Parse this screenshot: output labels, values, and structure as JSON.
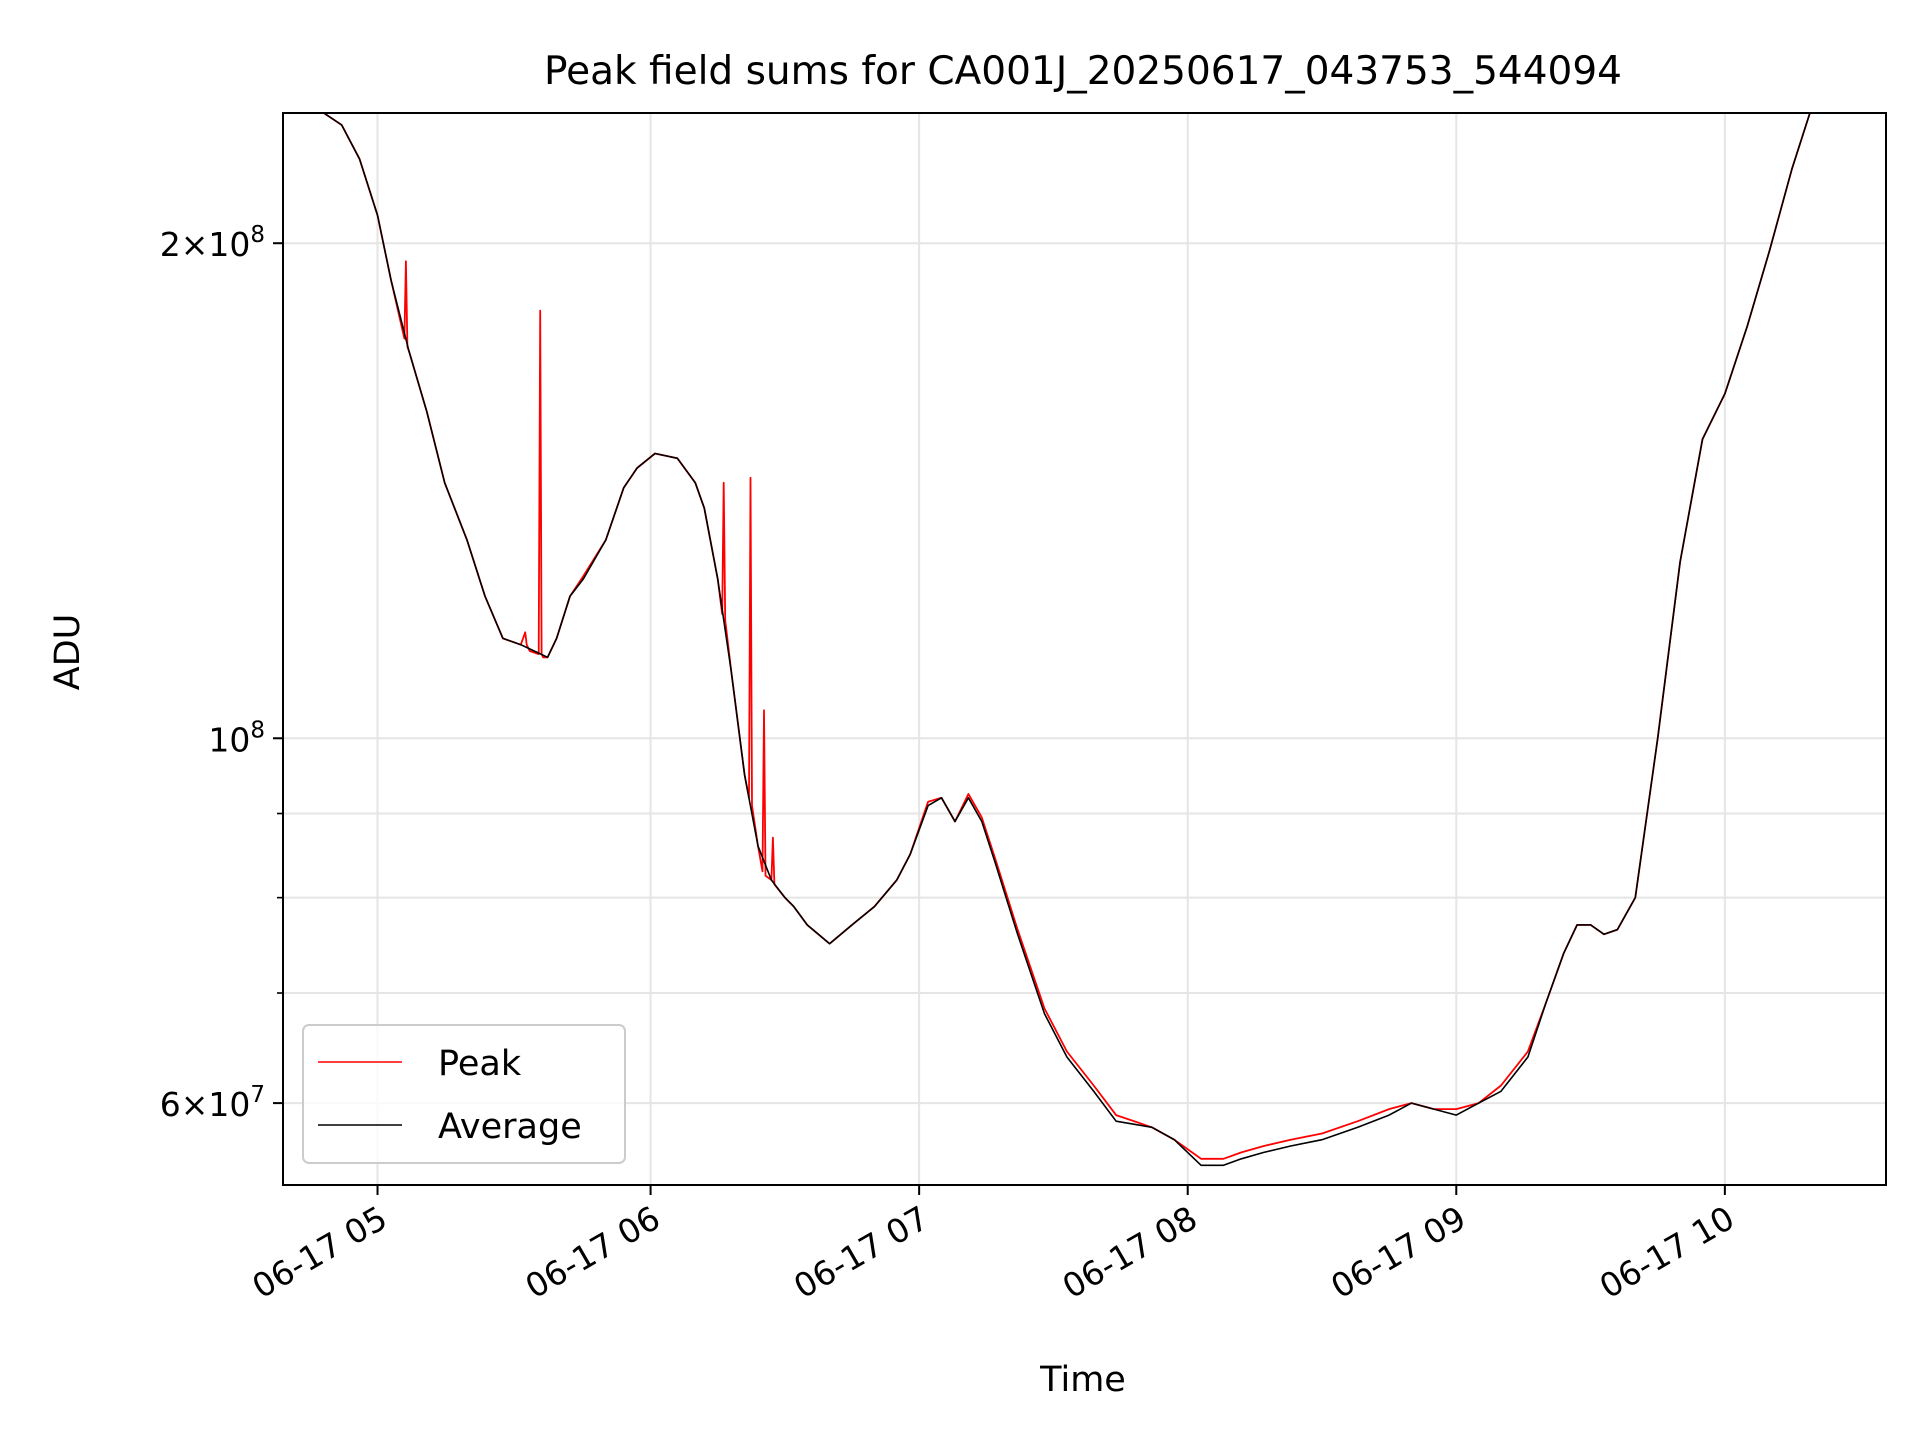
{
  "chart_data": {
    "type": "line",
    "title": "Peak field sums for CA001J_20250617_043753_544094",
    "xlabel": "Time",
    "ylabel": "ADU",
    "x_unit": "time (2025-06-17)",
    "xlim": [
      "04:37:53",
      "10:36:00"
    ],
    "ylim": [
      53500000,
      240000000
    ],
    "yscale": "log",
    "grid": true,
    "legend_position": "lower left",
    "x_ticks": [
      "04:59:00",
      "06:00:00",
      "07:00:00",
      "08:00:00",
      "09:00:00",
      "10:00:00"
    ],
    "x_tick_labels": [
      "06-17 05",
      "06-17 06",
      "06-17 07",
      "06-17 08",
      "06-17 09",
      "06-17 10"
    ],
    "y_major_ticks": [
      60000000,
      100000000,
      200000000
    ],
    "y_tick_labels": [
      {
        "base": "6×10",
        "exp": "7"
      },
      {
        "base": "10",
        "exp": "8"
      },
      {
        "base": "2×10",
        "exp": "8"
      }
    ],
    "y_minor_ticks": [
      70000000,
      80000000,
      90000000
    ],
    "colors": {
      "Peak": "#ff0000",
      "Average": "#000000",
      "grid": "#e5e5e5"
    },
    "series": [
      {
        "name": "Average",
        "x": [
          "04:37:53",
          "04:47:00",
          "04:51:00",
          "04:55:00",
          "04:59:00",
          "05:02:00",
          "05:06:00",
          "05:10:00",
          "05:14:00",
          "05:19:00",
          "05:23:00",
          "05:27:00",
          "05:31:00",
          "05:34:00",
          "05:37:00",
          "05:39:00",
          "05:42:00",
          "05:45:00",
          "05:50:00",
          "05:54:00",
          "05:57:00",
          "06:01:00",
          "06:06:00",
          "06:10:00",
          "06:12:00",
          "06:15:00",
          "06:18:00",
          "06:21:00",
          "06:24:00",
          "06:27:00",
          "06:30:00",
          "06:32:00",
          "06:35:00",
          "06:40:00",
          "06:45:00",
          "06:50:00",
          "06:55:00",
          "06:58:00",
          "07:02:00",
          "07:05:00",
          "07:08:00",
          "07:11:00",
          "07:14:00",
          "07:17:00",
          "07:22:00",
          "07:28:00",
          "07:33:00",
          "07:39:00",
          "07:44:00",
          "07:52:00",
          "07:57:00",
          "08:03:00",
          "08:08:00",
          "08:12:00",
          "08:17:00",
          "08:23:00",
          "08:30:00",
          "08:38:00",
          "08:45:00",
          "08:50:00",
          "08:55:00",
          "09:00:00",
          "09:05:00",
          "09:10:00",
          "09:16:00",
          "09:20:00",
          "09:24:00",
          "09:27:00",
          "09:30:00",
          "09:33:00",
          "09:36:00",
          "09:40:00",
          "09:45:00",
          "09:50:00",
          "09:55:00",
          "10:00:00",
          "10:05:00",
          "10:10:00",
          "10:15:00",
          "10:19:00",
          "10:36:00"
        ],
        "y": [
          240000000,
          240000000,
          236000000,
          225000000,
          208000000,
          190000000,
          172000000,
          158000000,
          143000000,
          132000000,
          122000000,
          115000000,
          114000000,
          113000000,
          112000000,
          115000000,
          122000000,
          125000000,
          132000000,
          142000000,
          146000000,
          149000000,
          148000000,
          143000000,
          138000000,
          125000000,
          110000000,
          95000000,
          86000000,
          82000000,
          80000000,
          79000000,
          77000000,
          75000000,
          77000000,
          79000000,
          82000000,
          85000000,
          91000000,
          92000000,
          89000000,
          92000000,
          89000000,
          84000000,
          76000000,
          68000000,
          64000000,
          61000000,
          58500000,
          58000000,
          57000000,
          55000000,
          55000000,
          55500000,
          56000000,
          56500000,
          57000000,
          58000000,
          59000000,
          60000000,
          59500000,
          59000000,
          60000000,
          61000000,
          64000000,
          69000000,
          74000000,
          77000000,
          77000000,
          76000000,
          76500000,
          80000000,
          100000000,
          128000000,
          152000000,
          162000000,
          178000000,
          198000000,
          222000000,
          240000000,
          240000000
        ]
      },
      {
        "name": "Peak",
        "x": [
          "04:37:53",
          "04:47:00",
          "04:51:00",
          "04:55:00",
          "04:59:00",
          "05:02:00",
          "05:05:00",
          "05:05:20",
          "05:05:40",
          "05:06:00",
          "05:10:00",
          "05:14:00",
          "05:19:00",
          "05:23:00",
          "05:27:00",
          "05:31:00",
          "05:32:00",
          "05:32:20",
          "05:33:00",
          "05:35:00",
          "05:35:20",
          "05:35:40",
          "05:36:00",
          "05:37:00",
          "05:39:00",
          "05:42:00",
          "05:45:00",
          "05:50:00",
          "05:54:00",
          "05:57:00",
          "06:01:00",
          "06:06:00",
          "06:10:00",
          "06:12:00",
          "06:15:00",
          "06:16:00",
          "06:16:20",
          "06:16:40",
          "06:18:00",
          "06:21:00",
          "06:22:00",
          "06:22:20",
          "06:22:40",
          "06:24:00",
          "06:25:00",
          "06:25:20",
          "06:25:40",
          "06:27:00",
          "06:27:20",
          "06:27:40",
          "06:30:00",
          "06:32:00",
          "06:35:00",
          "06:40:00",
          "06:45:00",
          "06:50:00",
          "06:55:00",
          "06:58:00",
          "07:02:00",
          "07:05:00",
          "07:08:00",
          "07:11:00",
          "07:14:00",
          "07:17:00",
          "07:22:00",
          "07:28:00",
          "07:33:00",
          "07:39:00",
          "07:44:00",
          "07:52:00",
          "07:57:00",
          "08:03:00",
          "08:08:00",
          "08:12:00",
          "08:17:00",
          "08:23:00",
          "08:30:00",
          "08:38:00",
          "08:45:00",
          "08:50:00",
          "08:55:00",
          "09:00:00",
          "09:05:00",
          "09:10:00",
          "09:16:00",
          "09:20:00",
          "09:24:00",
          "09:27:00",
          "09:30:00",
          "09:33:00",
          "09:36:00",
          "09:40:00",
          "09:45:00",
          "09:50:00",
          "09:55:00",
          "10:00:00",
          "10:05:00",
          "10:10:00",
          "10:15:00",
          "10:19:00",
          "10:36:00"
        ],
        "y": [
          240000000,
          240000000,
          236000000,
          225000000,
          208000000,
          190000000,
          175000000,
          195000000,
          173000000,
          172000000,
          158000000,
          143000000,
          132000000,
          122000000,
          115000000,
          114000000,
          116000000,
          114000000,
          113000000,
          112500000,
          182000000,
          112500000,
          112000000,
          112000000,
          115000000,
          122000000,
          125500000,
          132000000,
          142000000,
          146000000,
          149000000,
          148000000,
          143000000,
          138000000,
          125000000,
          119000000,
          143000000,
          118000000,
          110000000,
          95000000,
          92000000,
          144000000,
          91000000,
          86000000,
          83000000,
          104000000,
          82500000,
          82000000,
          87000000,
          81500000,
          80000000,
          79000000,
          77000000,
          75000000,
          77000000,
          79000000,
          82000000,
          85000000,
          91500000,
          92000000,
          89000000,
          92500000,
          89500000,
          84500000,
          76500000,
          68500000,
          64500000,
          61500000,
          59000000,
          58000000,
          57000000,
          55500000,
          55500000,
          56000000,
          56500000,
          57000000,
          57500000,
          58500000,
          59500000,
          60000000,
          59500000,
          59500000,
          60000000,
          61500000,
          64500000,
          69000000,
          74000000,
          77000000,
          77000000,
          76000000,
          76500000,
          80000000,
          100000000,
          128000000,
          152000000,
          162000000,
          178000000,
          198000000,
          222000000,
          240000000,
          240000000
        ]
      }
    ]
  }
}
